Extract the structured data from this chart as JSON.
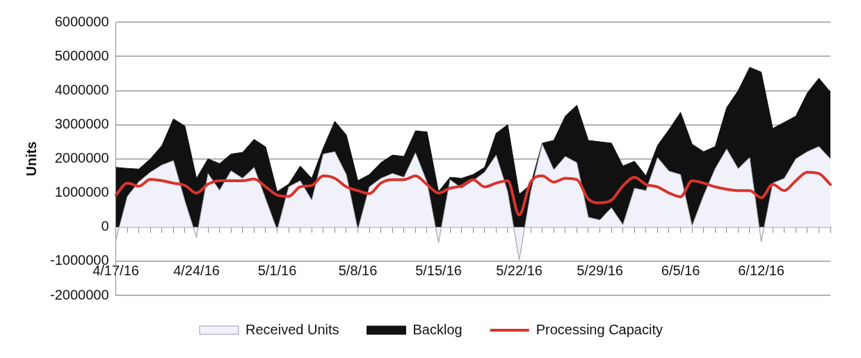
{
  "chart_data": {
    "type": "area",
    "ylabel": "Units",
    "stacked": true,
    "grid": "y",
    "legend": "bottom",
    "categories": [
      "4/17/16",
      null,
      null,
      null,
      null,
      null,
      null,
      "4/24/16",
      null,
      null,
      null,
      null,
      null,
      null,
      "5/1/16",
      null,
      null,
      null,
      null,
      null,
      null,
      "5/8/16",
      null,
      null,
      null,
      null,
      null,
      null,
      "5/15/16",
      null,
      null,
      null,
      null,
      null,
      null,
      "5/22/16",
      null,
      null,
      null,
      null,
      null,
      null,
      "5/29/16",
      null,
      null,
      null,
      null,
      null,
      null,
      "6/5/16",
      null,
      null,
      null,
      null,
      null,
      null,
      "6/12/16",
      null,
      null,
      null,
      null,
      null,
      null
    ],
    "ylim": [
      -2000000,
      6000000
    ],
    "yticks": [
      -2000000,
      -1000000,
      0,
      1000000,
      2000000,
      3000000,
      4000000,
      5000000,
      6000000
    ],
    "series": [
      {
        "name": "Received Units",
        "type": "area",
        "color": "#f1f1f9",
        "values": [
          -380000,
          900000,
          1330000,
          1610000,
          1820000,
          1950000,
          760000,
          -300000,
          1570000,
          1080000,
          1650000,
          1430000,
          1750000,
          830000,
          -90000,
          1180000,
          1360000,
          790000,
          2140000,
          2210000,
          1540000,
          -70000,
          1180000,
          1430000,
          1570000,
          1460000,
          2180000,
          1320000,
          -460000,
          1390000,
          1140000,
          1360000,
          1610000,
          2110000,
          1040000,
          -960000,
          1040000,
          2430000,
          1680000,
          2070000,
          1890000,
          290000,
          210000,
          570000,
          70000,
          1140000,
          1070000,
          2040000,
          1640000,
          1540000,
          40000,
          930000,
          1710000,
          2290000,
          1710000,
          2040000,
          -430000,
          1290000,
          1430000,
          2000000,
          2210000,
          2360000,
          2000000
        ]
      },
      {
        "name": "Backlog",
        "type": "area",
        "color": "#111111",
        "values": [
          2130000,
          820000,
          370000,
          390000,
          570000,
          1220000,
          2200000,
          1730000,
          430000,
          780000,
          490000,
          760000,
          820000,
          1520000,
          1130000,
          80000,
          430000,
          640000,
          180000,
          890000,
          1160000,
          1430000,
          360000,
          460000,
          540000,
          610000,
          640000,
          1470000,
          1500000,
          70000,
          290000,
          180000,
          140000,
          640000,
          1960000,
          1920000,
          210000,
          30000,
          860000,
          1180000,
          1680000,
          2250000,
          2290000,
          1890000,
          1720000,
          790000,
          430000,
          350000,
          1220000,
          1820000,
          2390000,
          1280000,
          650000,
          1210000,
          2290000,
          2640000,
          4970000,
          1600000,
          1640000,
          1250000,
          1720000,
          2000000,
          1960000
        ]
      },
      {
        "name": "Processing Capacity",
        "type": "line",
        "color": "#d9342b",
        "values": [
          940000,
          1290000,
          1200000,
          1400000,
          1360000,
          1290000,
          1220000,
          1000000,
          1260000,
          1360000,
          1360000,
          1360000,
          1410000,
          1180000,
          940000,
          900000,
          1180000,
          1220000,
          1500000,
          1430000,
          1180000,
          1070000,
          980000,
          1290000,
          1390000,
          1390000,
          1500000,
          1250000,
          1000000,
          1140000,
          1210000,
          1390000,
          1180000,
          1290000,
          1360000,
          360000,
          1320000,
          1500000,
          1320000,
          1430000,
          1390000,
          820000,
          710000,
          790000,
          1210000,
          1460000,
          1250000,
          1180000,
          1000000,
          890000,
          1360000,
          1290000,
          1180000,
          1110000,
          1070000,
          1070000,
          860000,
          1250000,
          1070000,
          1360000,
          1610000,
          1570000,
          1250000
        ]
      }
    ]
  }
}
